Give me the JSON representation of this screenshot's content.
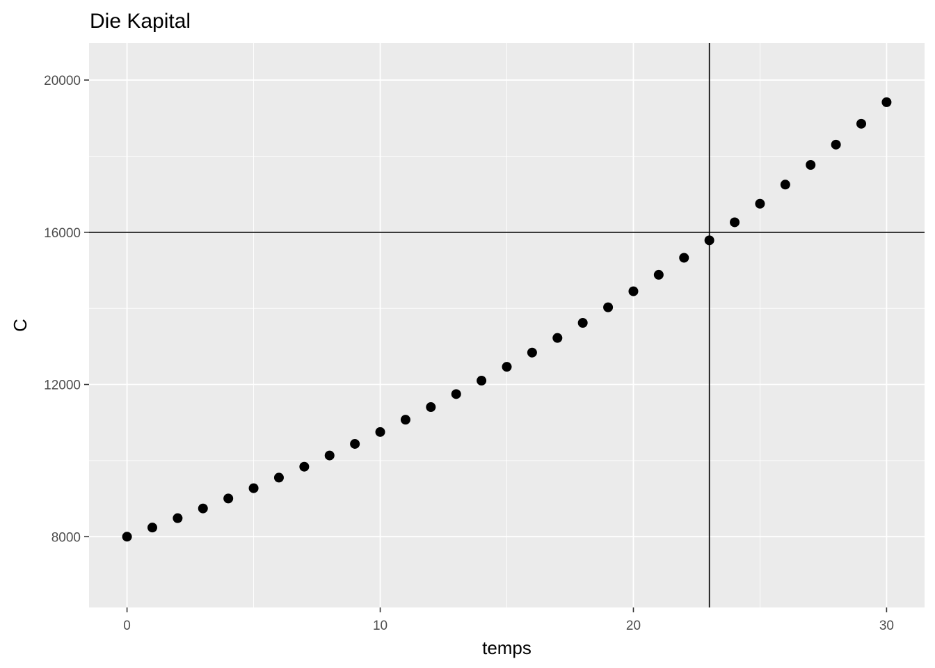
{
  "chart_data": {
    "type": "scatter",
    "title": "Die Kapital",
    "xlabel": "temps",
    "ylabel": "C",
    "x": [
      0,
      1,
      2,
      3,
      4,
      5,
      6,
      7,
      8,
      9,
      10,
      11,
      12,
      13,
      14,
      15,
      16,
      17,
      18,
      19,
      20,
      21,
      22,
      23,
      24,
      25,
      26,
      27,
      28,
      29,
      30
    ],
    "y": [
      8000,
      8240,
      8487,
      8742,
      9004,
      9274,
      9552,
      9839,
      10134,
      10438,
      10751,
      11074,
      11406,
      11748,
      12101,
      12464,
      12838,
      13223,
      13619,
      14028,
      14449,
      14882,
      15329,
      15789,
      16262,
      16750,
      17253,
      17770,
      18303,
      18852,
      19418
    ],
    "xlim": [
      -1.5,
      31.5
    ],
    "ylim": [
      6140,
      20970
    ],
    "x_ticks": [
      0,
      10,
      20,
      30
    ],
    "x_tick_labels": [
      "0",
      "10",
      "20",
      "30"
    ],
    "y_ticks": [
      8000,
      12000,
      16000,
      20000
    ],
    "y_tick_labels": [
      "8000",
      "12000",
      "16000",
      "20000"
    ],
    "reference_lines": {
      "vline_x": 23,
      "hline_y": 16000
    },
    "grid": true,
    "legend": "none",
    "colors": {
      "panel": "#ebebeb",
      "grid": "#ffffff",
      "point": "#000000",
      "ref_line": "#000000",
      "tick": "#333333"
    }
  }
}
